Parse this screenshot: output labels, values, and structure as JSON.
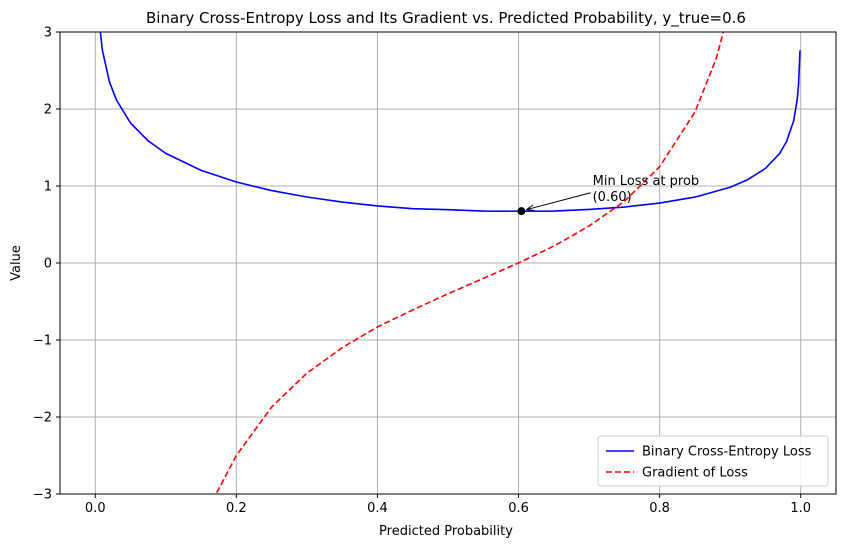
{
  "chart_data": {
    "type": "line",
    "title": "Binary Cross-Entropy Loss and Its Gradient vs. Predicted Probability, y_true=0.6",
    "xlabel": "Predicted Probability",
    "ylabel": "Value",
    "xlim": [
      -0.05,
      1.05
    ],
    "ylim": [
      -3,
      3
    ],
    "x_ticks": [
      0.0,
      0.2,
      0.4,
      0.6,
      0.8,
      1.0
    ],
    "x_tick_labels": [
      "0.0",
      "0.2",
      "0.4",
      "0.6",
      "0.8",
      "1.0"
    ],
    "y_ticks": [
      -3,
      -2,
      -1,
      0,
      1,
      2,
      3
    ],
    "y_tick_labels": [
      "−3",
      "−2",
      "−1",
      "0",
      "1",
      "2",
      "3"
    ],
    "grid": true,
    "y_true": 0.6,
    "legend_position": "lower-right",
    "series": [
      {
        "name": "Binary Cross-Entropy Loss",
        "color": "#0000ff",
        "style": "solid",
        "x": [
          0.001,
          0.003,
          0.005,
          0.01,
          0.02,
          0.03,
          0.05,
          0.075,
          0.1,
          0.15,
          0.2,
          0.25,
          0.3,
          0.35,
          0.4,
          0.45,
          0.5,
          0.55,
          0.6,
          0.65,
          0.7,
          0.75,
          0.8,
          0.85,
          0.9,
          0.925,
          0.95,
          0.97,
          0.98,
          0.99,
          0.995,
          0.997,
          0.999
        ],
        "y": [
          4.145,
          3.487,
          3.181,
          2.767,
          2.355,
          2.116,
          1.818,
          1.586,
          1.424,
          1.203,
          1.052,
          0.941,
          0.857,
          0.791,
          0.741,
          0.705,
          0.693,
          0.675,
          0.673,
          0.675,
          0.696,
          0.727,
          0.778,
          0.856,
          0.984,
          1.083,
          1.229,
          1.421,
          1.58,
          1.848,
          2.122,
          2.326,
          2.763
        ]
      },
      {
        "name": "Gradient of Loss",
        "color": "#ff0000",
        "style": "dashed",
        "x": [
          0.15,
          0.17,
          0.2,
          0.25,
          0.3,
          0.35,
          0.4,
          0.45,
          0.5,
          0.55,
          0.6,
          0.65,
          0.7,
          0.75,
          0.8,
          0.85,
          0.88,
          0.9
        ],
        "y": [
          -3.53,
          -3.02,
          -2.5,
          -1.87,
          -1.43,
          -1.1,
          -0.83,
          -0.61,
          -0.4,
          -0.2,
          0.0,
          0.22,
          0.48,
          0.8,
          1.25,
          1.96,
          2.65,
          3.33
        ]
      }
    ],
    "annotations": [
      {
        "text_lines": [
          "Min Loss at prob",
          "(0.60)"
        ],
        "point": [
          0.604,
          0.673
        ],
        "text_at": [
          0.705,
          0.86
        ]
      }
    ]
  }
}
